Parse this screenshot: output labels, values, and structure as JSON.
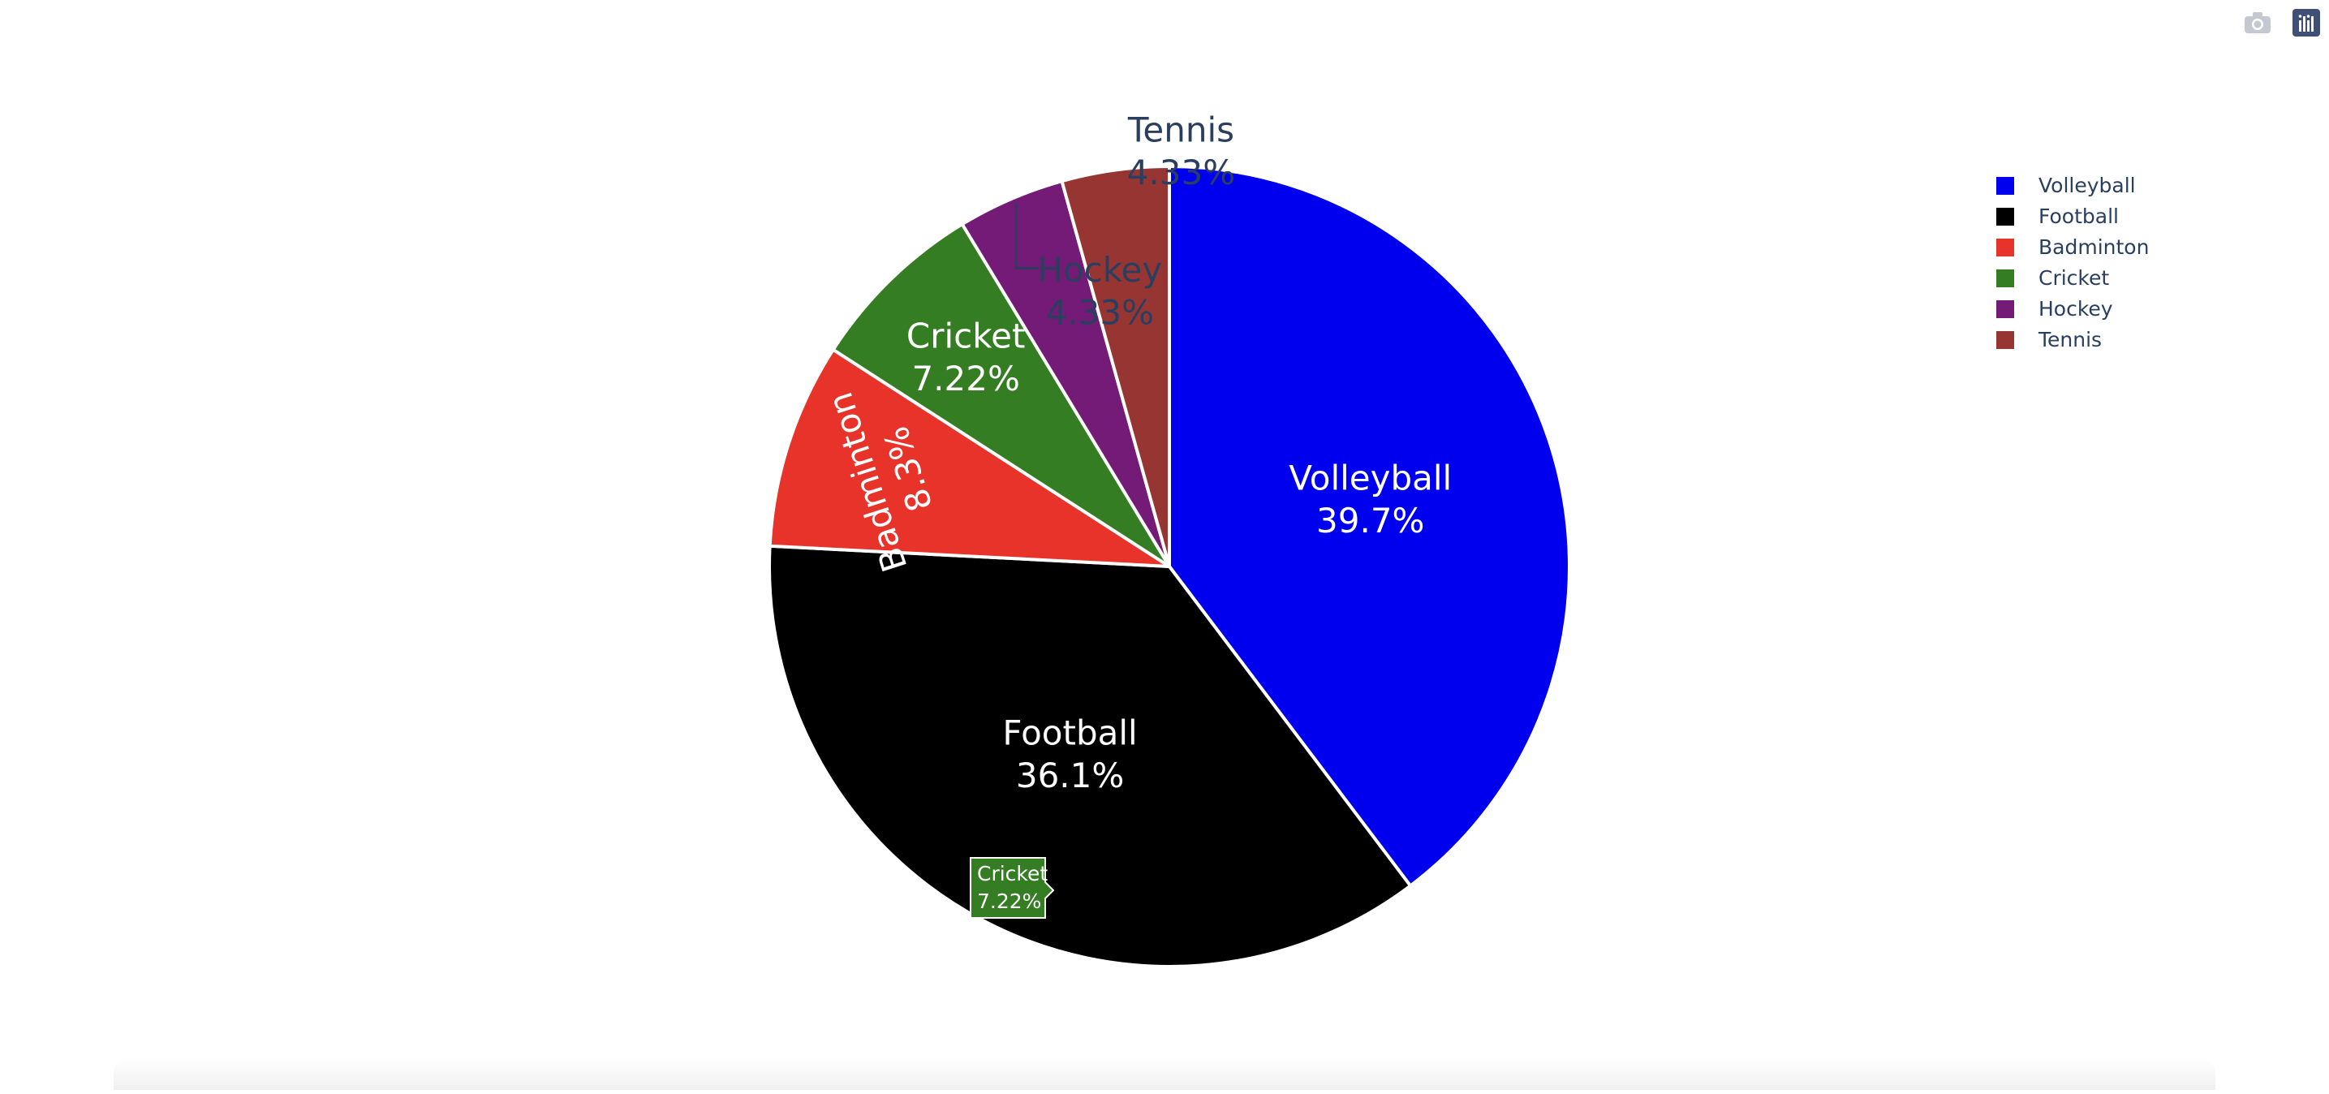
{
  "chart_data": {
    "type": "pie",
    "categories": [
      "Volleyball",
      "Football",
      "Badminton",
      "Cricket",
      "Hockey",
      "Tennis"
    ],
    "values": [
      39.7,
      36.1,
      8.3,
      7.22,
      4.33,
      4.33
    ],
    "slice_labels": {
      "Volleyball": [
        "Volleyball",
        "39.7%"
      ],
      "Football": [
        "Football",
        "36.1%"
      ],
      "Badminton": [
        "Badminton",
        "8.3%"
      ],
      "Cricket": [
        "Cricket",
        "7.22%"
      ],
      "Hockey": [
        "Hockey",
        "4.33%"
      ],
      "Tennis": [
        "Tennis",
        "4.33%"
      ]
    },
    "colors": {
      "Volleyball": "#0000ee",
      "Football": "#000000",
      "Badminton": "#e8332a",
      "Cricket": "#357d22",
      "Hockey": "#741b77",
      "Tennis": "#963532"
    },
    "legend": [
      "Volleyball",
      "Football",
      "Badminton",
      "Cricket",
      "Hockey",
      "Tennis"
    ],
    "legend_position": "top-right",
    "hover_tooltip": {
      "category": "Cricket",
      "lines": [
        "Cricket",
        "7.22%"
      ]
    },
    "title": "",
    "direction": "clockwise",
    "start_angle": "top"
  },
  "modebar": {
    "icons": [
      "camera-icon",
      "plotly-logo-icon"
    ]
  },
  "colors": {
    "text": "#2a3f5f",
    "slice_border": "#ffffff"
  }
}
